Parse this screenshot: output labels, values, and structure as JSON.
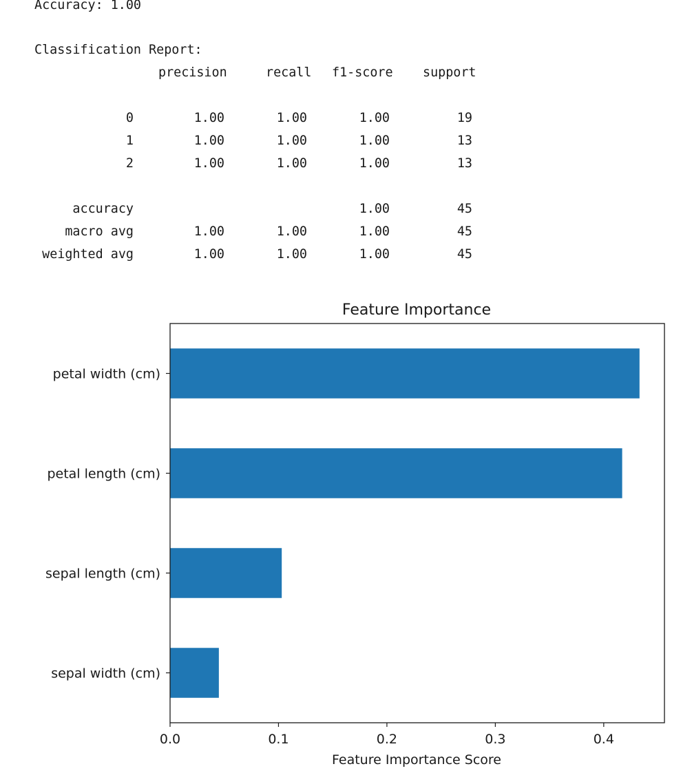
{
  "console": {
    "accuracy_line": "Accuracy: 1.00",
    "report_title": "Classification Report:",
    "headers": [
      "precision",
      "recall",
      "f1-score",
      "support"
    ],
    "rows": [
      {
        "label": "0",
        "precision": "1.00",
        "recall": "1.00",
        "f1": "1.00",
        "support": "19"
      },
      {
        "label": "1",
        "precision": "1.00",
        "recall": "1.00",
        "f1": "1.00",
        "support": "13"
      },
      {
        "label": "2",
        "precision": "1.00",
        "recall": "1.00",
        "f1": "1.00",
        "support": "13"
      },
      {
        "label": "accuracy",
        "precision": "",
        "recall": "",
        "f1": "1.00",
        "support": "45"
      },
      {
        "label": "macro avg",
        "precision": "1.00",
        "recall": "1.00",
        "f1": "1.00",
        "support": "45"
      },
      {
        "label": "weighted avg",
        "precision": "1.00",
        "recall": "1.00",
        "f1": "1.00",
        "support": "45"
      }
    ]
  },
  "chart_data": {
    "type": "bar",
    "orientation": "horizontal",
    "title": "Feature Importance",
    "xlabel": "Feature Importance Score",
    "ylabel": "",
    "categories": [
      "petal width (cm)",
      "petal length (cm)",
      "sepal length (cm)",
      "sepal width (cm)"
    ],
    "values": [
      0.433,
      0.417,
      0.103,
      0.045
    ],
    "xlim": [
      0,
      0.456
    ],
    "xticks": [
      0.0,
      0.1,
      0.2,
      0.3,
      0.4
    ],
    "xtick_labels": [
      "0.0",
      "0.1",
      "0.2",
      "0.3",
      "0.4"
    ],
    "bar_color": "#1f77b4",
    "grid": false,
    "legend": false
  }
}
